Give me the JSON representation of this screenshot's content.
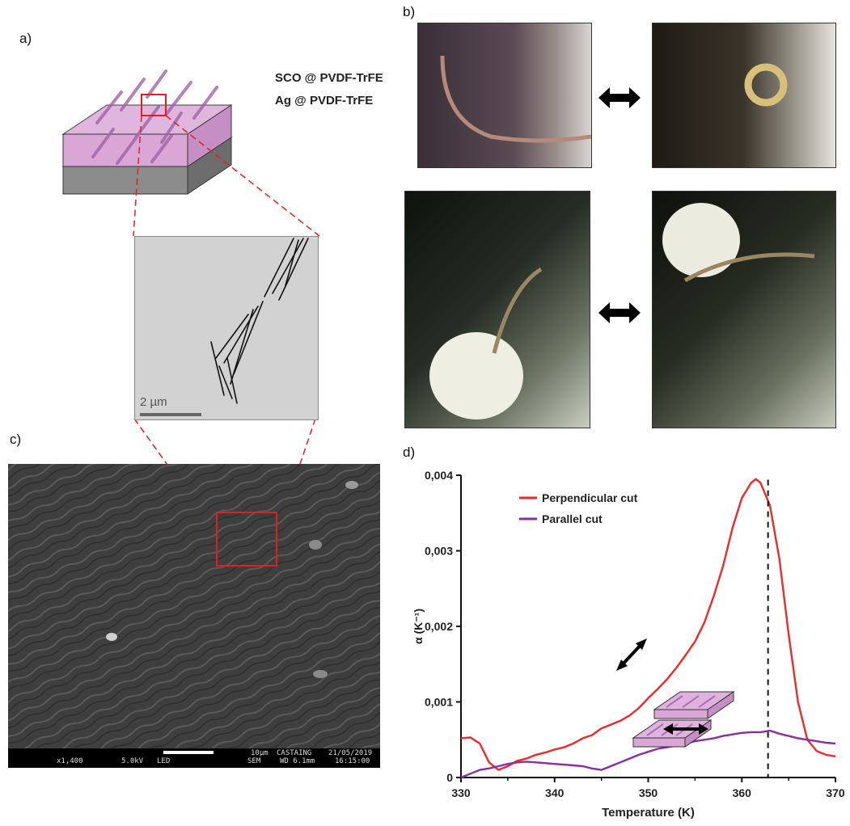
{
  "panels": {
    "a": {
      "label": "a)",
      "layer_top": "SCO @ PVDF-TrFE",
      "layer_bottom": "Ag @ PVDF-TrFE",
      "tem_scale": "2 µm"
    },
    "b": {
      "label": "b)"
    },
    "c": {
      "label": "c)",
      "sem_info": [
        "x1,400",
        "5.0kV",
        "LED",
        "SEM",
        "WD 6.1mm",
        "16:15:00",
        "10µm",
        "CASTAING",
        "21/05/2019"
      ]
    },
    "d": {
      "label": "d)"
    }
  },
  "colors": {
    "perpendicular": "#ee2a2a",
    "parallel": "#8a2fa0",
    "film": "#d9a6d6",
    "highlight": "#e02020"
  },
  "chart_data": {
    "type": "line",
    "xlabel": "Temperature (K)",
    "ylabel": "α (K⁻¹)",
    "xlim": [
      330,
      370
    ],
    "ylim": [
      0,
      0.004
    ],
    "xticks": [
      330,
      340,
      350,
      360,
      370
    ],
    "yticks": [
      0,
      0.001,
      0.002,
      0.003,
      0.004
    ],
    "ytick_labels": [
      "0",
      "0,001",
      "0,002",
      "0,003",
      "0,004"
    ],
    "legend_position": "upper-left",
    "vline_x": 362.8,
    "series": [
      {
        "name": "Perpendicular cut",
        "x": [
          330,
          331,
          332,
          333,
          334,
          335,
          336,
          337,
          338,
          339,
          340,
          341,
          342,
          343,
          344,
          345,
          346,
          347,
          348,
          349,
          350,
          351,
          352,
          353,
          354,
          355,
          356,
          357,
          358,
          359,
          360,
          361,
          361.5,
          362,
          363,
          364,
          365,
          366,
          367,
          368,
          369,
          370
        ],
        "y": [
          0.00052,
          0.00053,
          0.00045,
          0.0002,
          0.0001,
          0.00015,
          0.00022,
          0.00025,
          0.0003,
          0.00033,
          0.00037,
          0.0004,
          0.00045,
          0.00052,
          0.00056,
          0.00065,
          0.0007,
          0.00075,
          0.00082,
          0.00092,
          0.00105,
          0.00117,
          0.0013,
          0.00145,
          0.00162,
          0.0018,
          0.00205,
          0.0024,
          0.0028,
          0.0033,
          0.0037,
          0.0039,
          0.00395,
          0.0039,
          0.0036,
          0.0029,
          0.0019,
          0.001,
          0.0005,
          0.00035,
          0.0003,
          0.00028
        ]
      },
      {
        "name": "Parallel cut",
        "x": [
          330,
          331,
          332,
          333,
          334,
          335,
          336,
          337,
          338,
          339,
          340,
          341,
          342,
          343,
          344,
          345,
          346,
          347,
          348,
          349,
          350,
          351,
          352,
          353,
          354,
          355,
          356,
          357,
          358,
          359,
          360,
          361,
          362,
          363,
          364,
          365,
          366,
          367,
          368,
          369,
          370
        ],
        "y": [
          0.0,
          5e-05,
          0.0001,
          0.00012,
          0.00015,
          0.00018,
          0.0002,
          0.00021,
          0.0002,
          0.00019,
          0.00018,
          0.00017,
          0.00016,
          0.00015,
          0.00012,
          0.0001,
          0.00015,
          0.0002,
          0.00025,
          0.0003,
          0.00034,
          0.00038,
          0.0004,
          0.00042,
          0.00045,
          0.00048,
          0.0005,
          0.00052,
          0.00055,
          0.00057,
          0.00059,
          0.0006,
          0.0006,
          0.00062,
          0.00058,
          0.00055,
          0.00052,
          0.0005,
          0.00048,
          0.00046,
          0.00045
        ]
      }
    ]
  }
}
